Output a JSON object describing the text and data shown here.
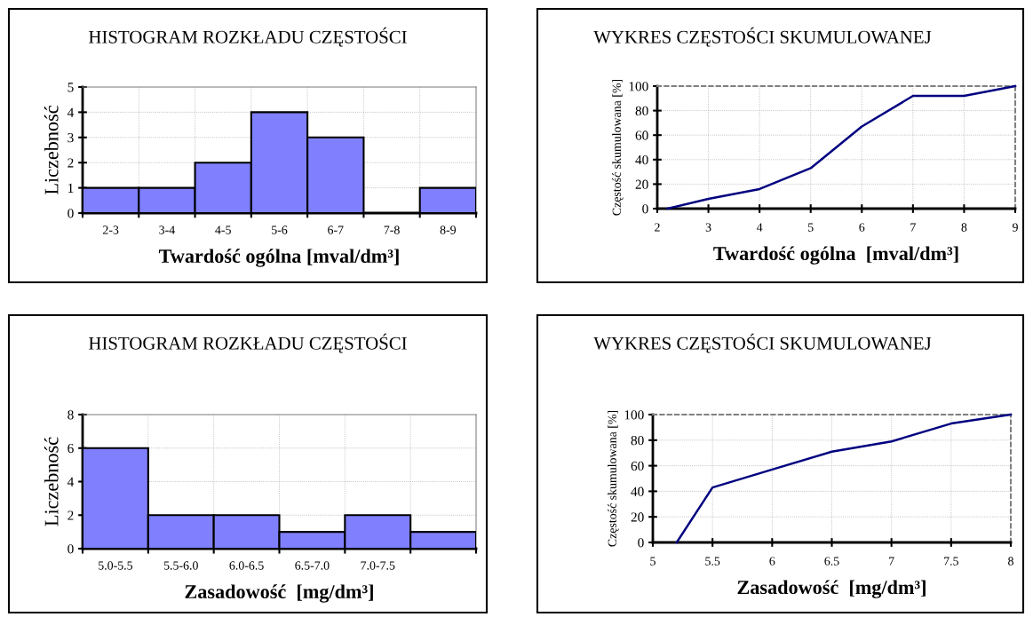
{
  "chart_data": [
    {
      "type": "bar",
      "title": "HISTOGRAM ROZKŁADU CZĘSTOŚCI",
      "xlabel": "Twardość ogólna [mval/dm³]",
      "ylabel": "Liczebność",
      "categories": [
        "2-3",
        "3-4",
        "4-5",
        "5-6",
        "6-7",
        "7-8",
        "8-9"
      ],
      "values": [
        1,
        1,
        2,
        4,
        3,
        0,
        1
      ],
      "color": "#8080ff",
      "ylim": [
        0,
        5
      ],
      "yticks": [
        0,
        1,
        2,
        3,
        4,
        5
      ],
      "grid": true
    },
    {
      "type": "line",
      "title": "WYKRES CZĘSTOŚCI SKUMULOWANEJ",
      "xlabel": "Twardość ogólna  [mval/dm³]",
      "ylabel": "Częstość skumulowana [%]",
      "x": [
        2.2,
        3,
        4,
        5,
        6,
        7,
        8,
        9
      ],
      "values": [
        0,
        8,
        16,
        33,
        67,
        92,
        92,
        100
      ],
      "color": "#000080",
      "xlim": [
        2,
        9
      ],
      "xticks": [
        2,
        3,
        4,
        5,
        6,
        7,
        8,
        9
      ],
      "ylim": [
        0,
        100
      ],
      "yticks": [
        0,
        20,
        40,
        60,
        80,
        100
      ],
      "grid": true
    },
    {
      "type": "bar",
      "title": "HISTOGRAM ROZKŁADU CZĘSTOŚCI",
      "xlabel": "Zasadowość  [mg/dm³]",
      "ylabel": "Liczebność",
      "categories": [
        "5.0-5.5",
        "5.5-6.0",
        "6.0-6.5",
        "6.5-7.0",
        "7.0-7.5",
        null
      ],
      "values": [
        6,
        2,
        2,
        1,
        2,
        1
      ],
      "color": "#8080ff",
      "ylim": [
        0,
        8
      ],
      "yticks": [
        0,
        2,
        4,
        6,
        8
      ],
      "grid": true
    },
    {
      "type": "line",
      "title": "WYKRES CZĘSTOŚCI SKUMULOWANEJ",
      "xlabel": "Zasadowość  [mg/dm³]",
      "ylabel": "Częstość skumulowana [%]",
      "x": [
        5.2,
        5.5,
        6,
        6.5,
        7,
        7.5,
        8
      ],
      "values": [
        0,
        43,
        57,
        71,
        79,
        93,
        100
      ],
      "color": "#000080",
      "xlim": [
        5,
        8
      ],
      "xticks": [
        5,
        5.5,
        6,
        6.5,
        7,
        7.5,
        8
      ],
      "ylim": [
        0,
        100
      ],
      "yticks": [
        0,
        20,
        40,
        60,
        80,
        100
      ],
      "grid": true
    }
  ]
}
